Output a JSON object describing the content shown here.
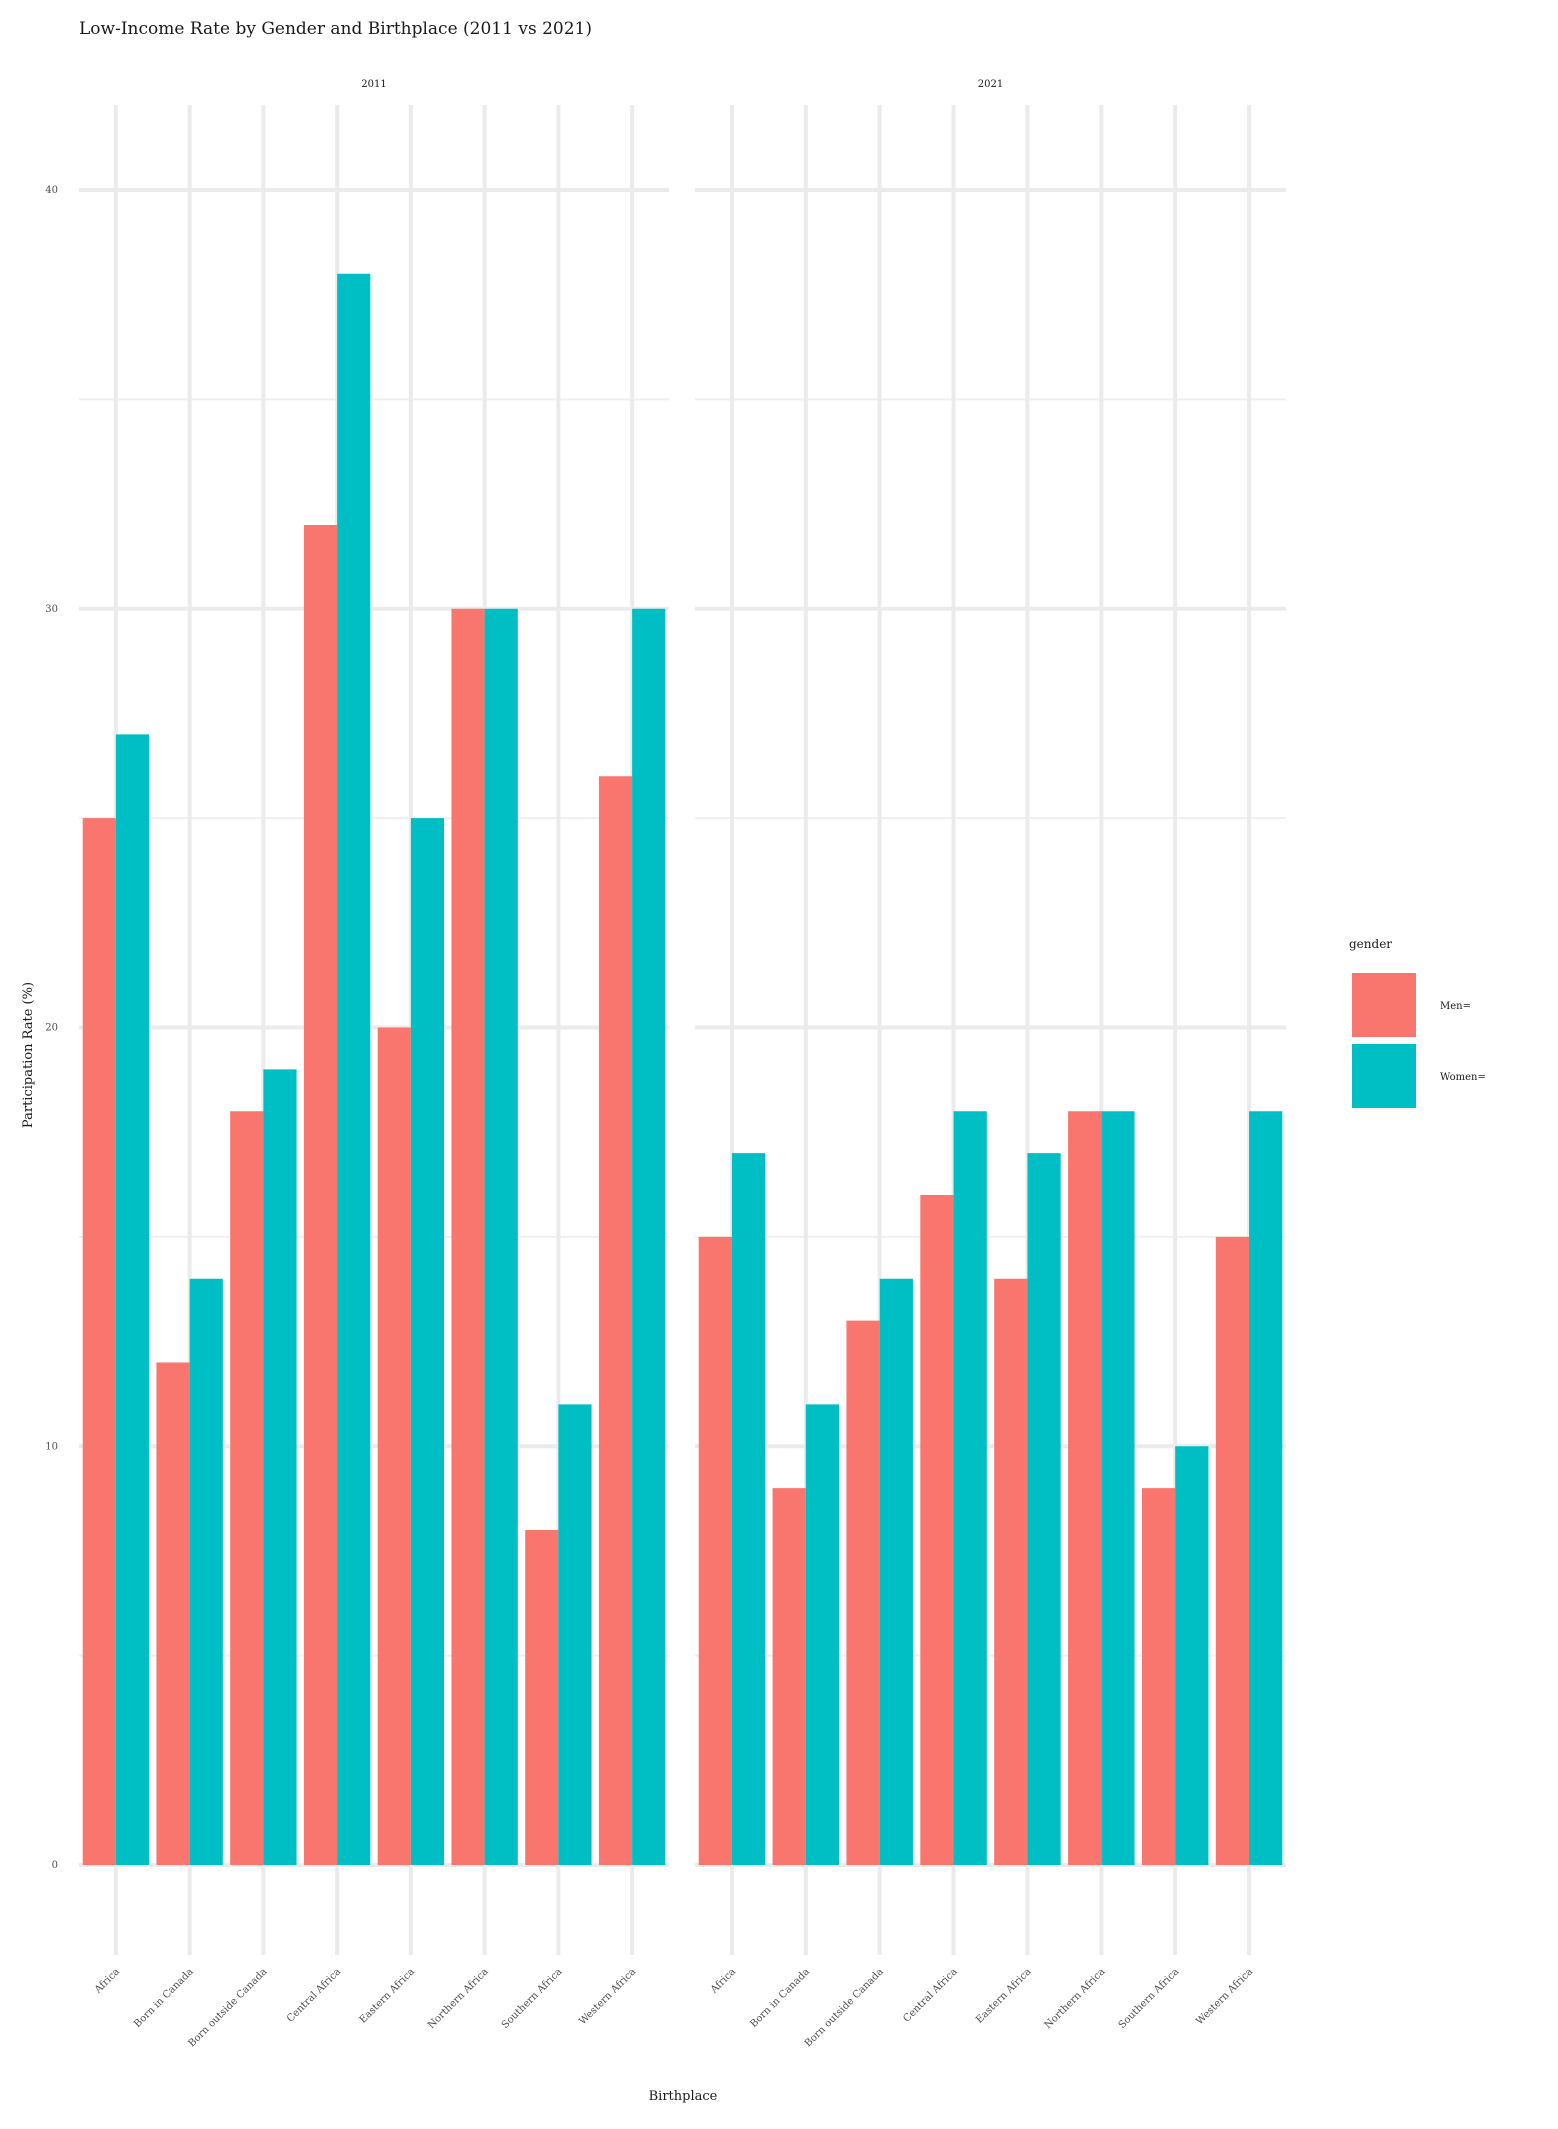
{
  "chart_data": {
    "type": "bar",
    "title": "Low-Income Rate by Gender and Birthplace (2011 vs 2021)",
    "xlabel": "Birthplace",
    "ylabel": "Participation Rate (%)",
    "ylim": [
      -4,
      40
    ],
    "yticks": [
      0,
      10,
      20,
      30,
      40
    ],
    "grid": true,
    "legend": {
      "title": "gender",
      "placement": "right",
      "entries": [
        {
          "name": "Men=",
          "color": "#F8766D"
        },
        {
          "name": "Women=",
          "color": "#00BFC4"
        }
      ]
    },
    "categories": [
      "Africa",
      "Born in Canada",
      "Born outside Canada",
      "Central Africa",
      "Eastern Africa",
      "Northern Africa",
      "Southern Africa",
      "Western Africa"
    ],
    "facets": [
      {
        "label": "2011",
        "series": [
          {
            "name": "Men=",
            "values": [
              25,
              12,
              18,
              32,
              20,
              30,
              8,
              26
            ]
          },
          {
            "name": "Women=",
            "values": [
              27,
              14,
              19,
              38,
              25,
              30,
              11,
              30
            ]
          }
        ]
      },
      {
        "label": "2021",
        "series": [
          {
            "name": "Men=",
            "values": [
              15,
              9,
              13,
              16,
              14,
              18,
              9,
              15
            ]
          },
          {
            "name": "Women=",
            "values": [
              17,
              11,
              14,
              18,
              17,
              18,
              10,
              18
            ]
          }
        ]
      }
    ]
  }
}
